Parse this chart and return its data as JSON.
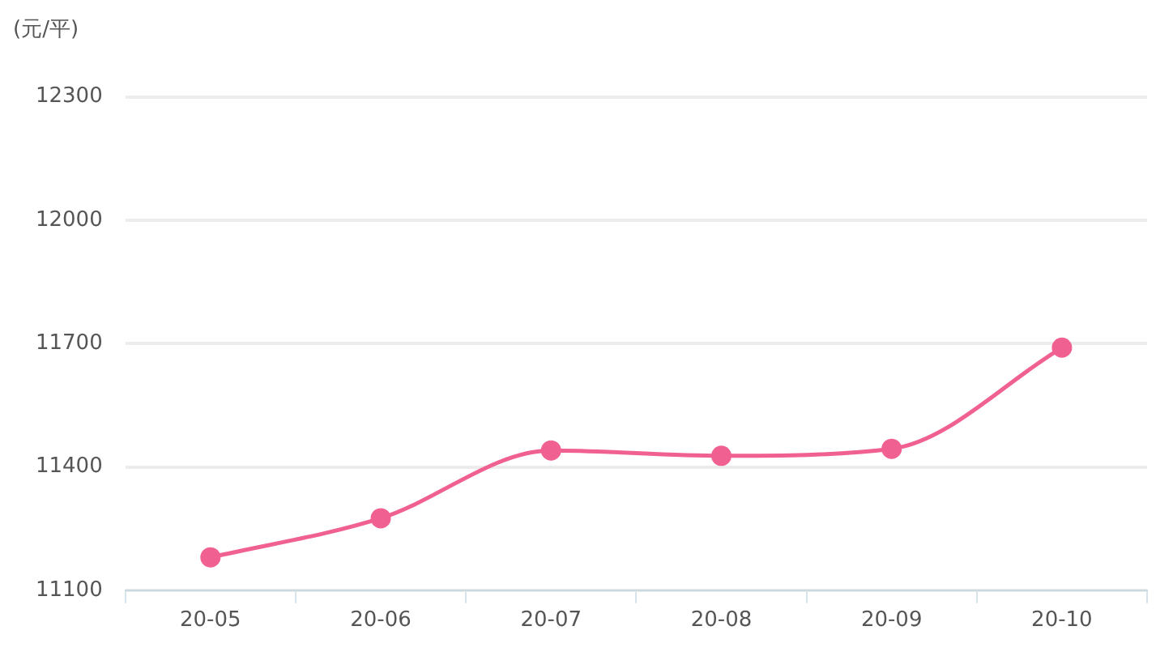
{
  "chart_data": {
    "type": "line",
    "ylabel": "(元/平)",
    "categories": [
      "20-05",
      "20-06",
      "20-07",
      "20-08",
      "20-09",
      "20-10"
    ],
    "series": [
      {
        "color": "#f06090",
        "values": [
          11180,
          11275,
          11440,
          11427,
          11444,
          11690
        ]
      }
    ],
    "ylim": [
      11100,
      12300
    ],
    "yticks": [
      11100,
      11400,
      11700,
      12000,
      12300
    ],
    "grid": "y",
    "marker": "circle",
    "legend": false
  }
}
